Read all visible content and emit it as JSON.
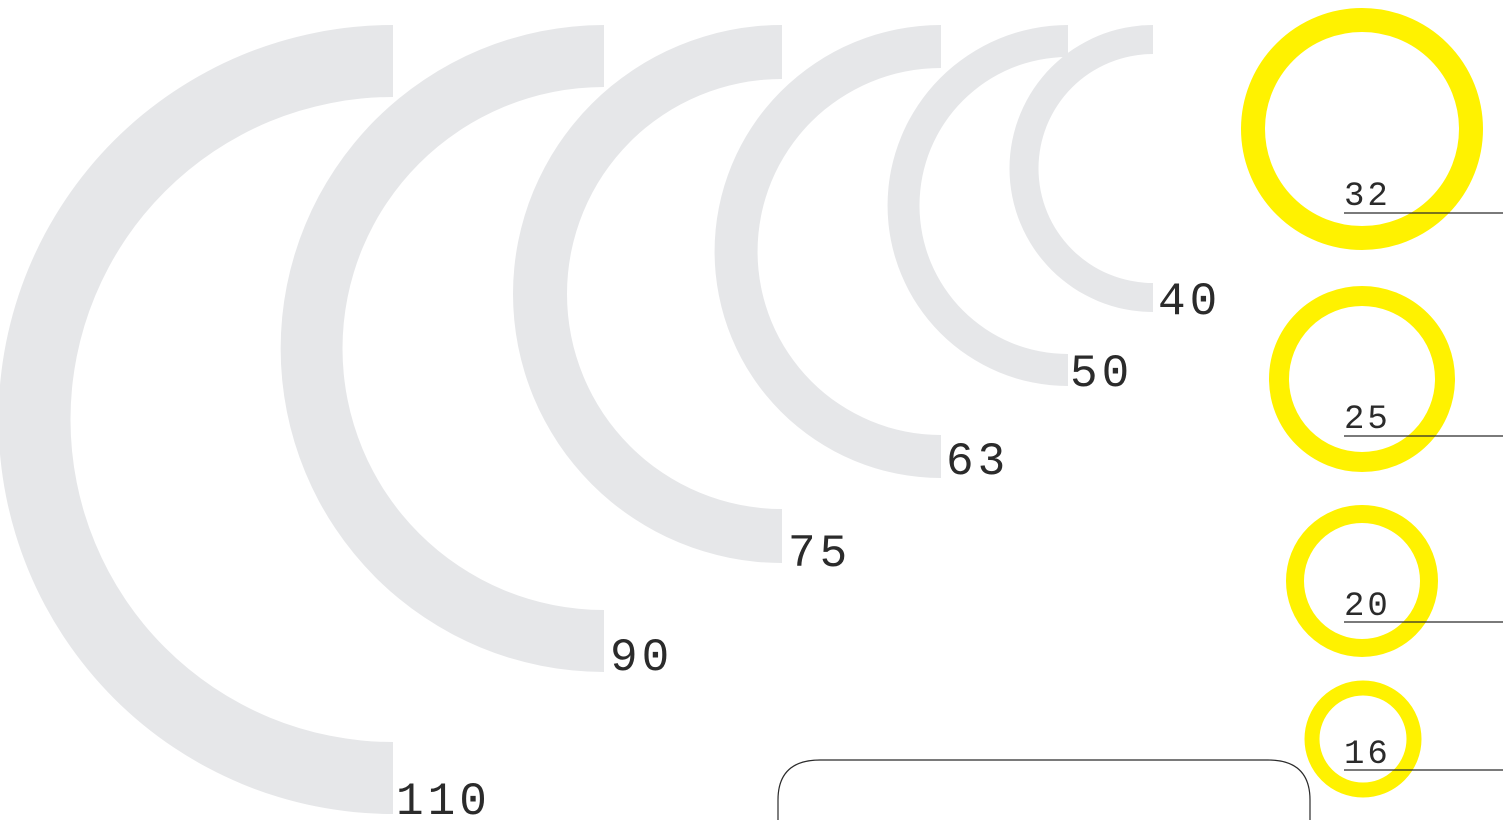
{
  "arc_color": "#e6e7e9",
  "ring_color": "#fff200",
  "text_color": "#2b2b2b",
  "arc_sizes": [
    {
      "label": "110"
    },
    {
      "label": "90"
    },
    {
      "label": "75"
    },
    {
      "label": "63"
    },
    {
      "label": "50"
    },
    {
      "label": "40"
    }
  ],
  "ring_sizes": [
    {
      "label": "32"
    },
    {
      "label": "25"
    },
    {
      "label": "20"
    },
    {
      "label": "16"
    }
  ]
}
